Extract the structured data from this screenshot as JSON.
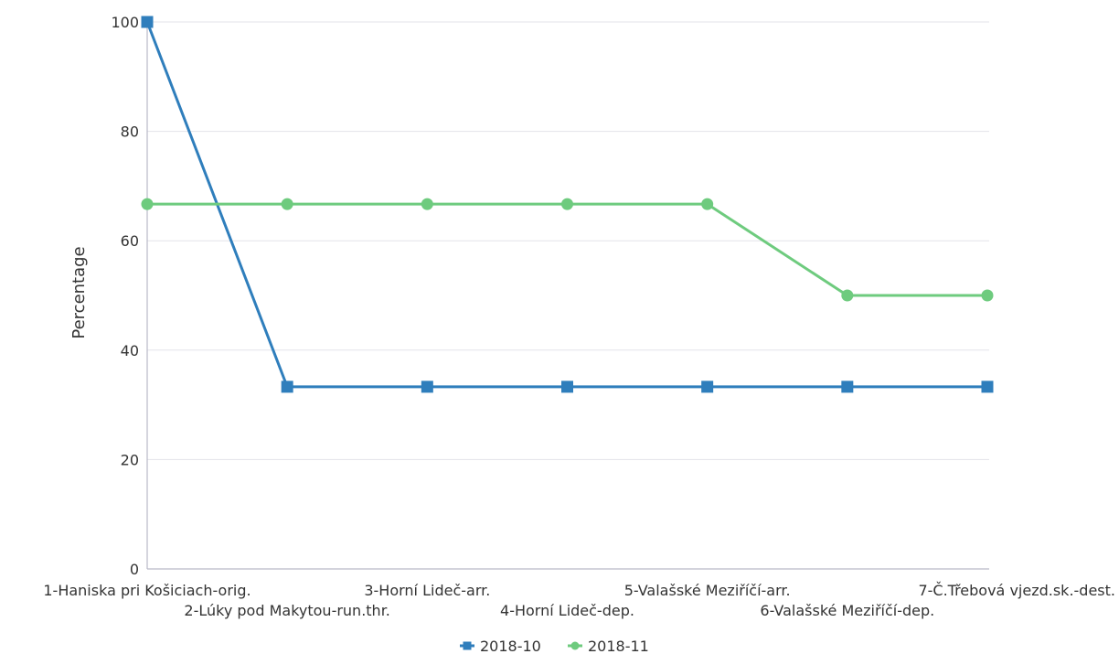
{
  "chart_data": {
    "type": "line",
    "title": "",
    "xlabel": "",
    "ylabel": "Percentage",
    "ylim": [
      0,
      100
    ],
    "yticks": [
      0,
      20,
      40,
      60,
      80,
      100
    ],
    "grid": true,
    "legend_position": "bottom-center",
    "categories": [
      "1-Haniska pri Košiciach-orig.",
      "2-Lúky pod Makytou-run.thr.",
      "3-Horní Lideč-arr.",
      "4-Horní Lideč-dep.",
      "5-Valašské Meziříčí-arr.",
      "6-Valašské Meziříčí-dep.",
      "7-Č.Třebová vjezd.sk.-dest."
    ],
    "series": [
      {
        "name": "2018-10",
        "color": "#2f7ebc",
        "marker": "square",
        "values": [
          100,
          33.3,
          33.3,
          33.3,
          33.3,
          33.3,
          33.3
        ]
      },
      {
        "name": "2018-11",
        "color": "#6ecb7e",
        "marker": "circle",
        "values": [
          66.7,
          66.7,
          66.7,
          66.7,
          66.7,
          50,
          50
        ]
      }
    ]
  }
}
